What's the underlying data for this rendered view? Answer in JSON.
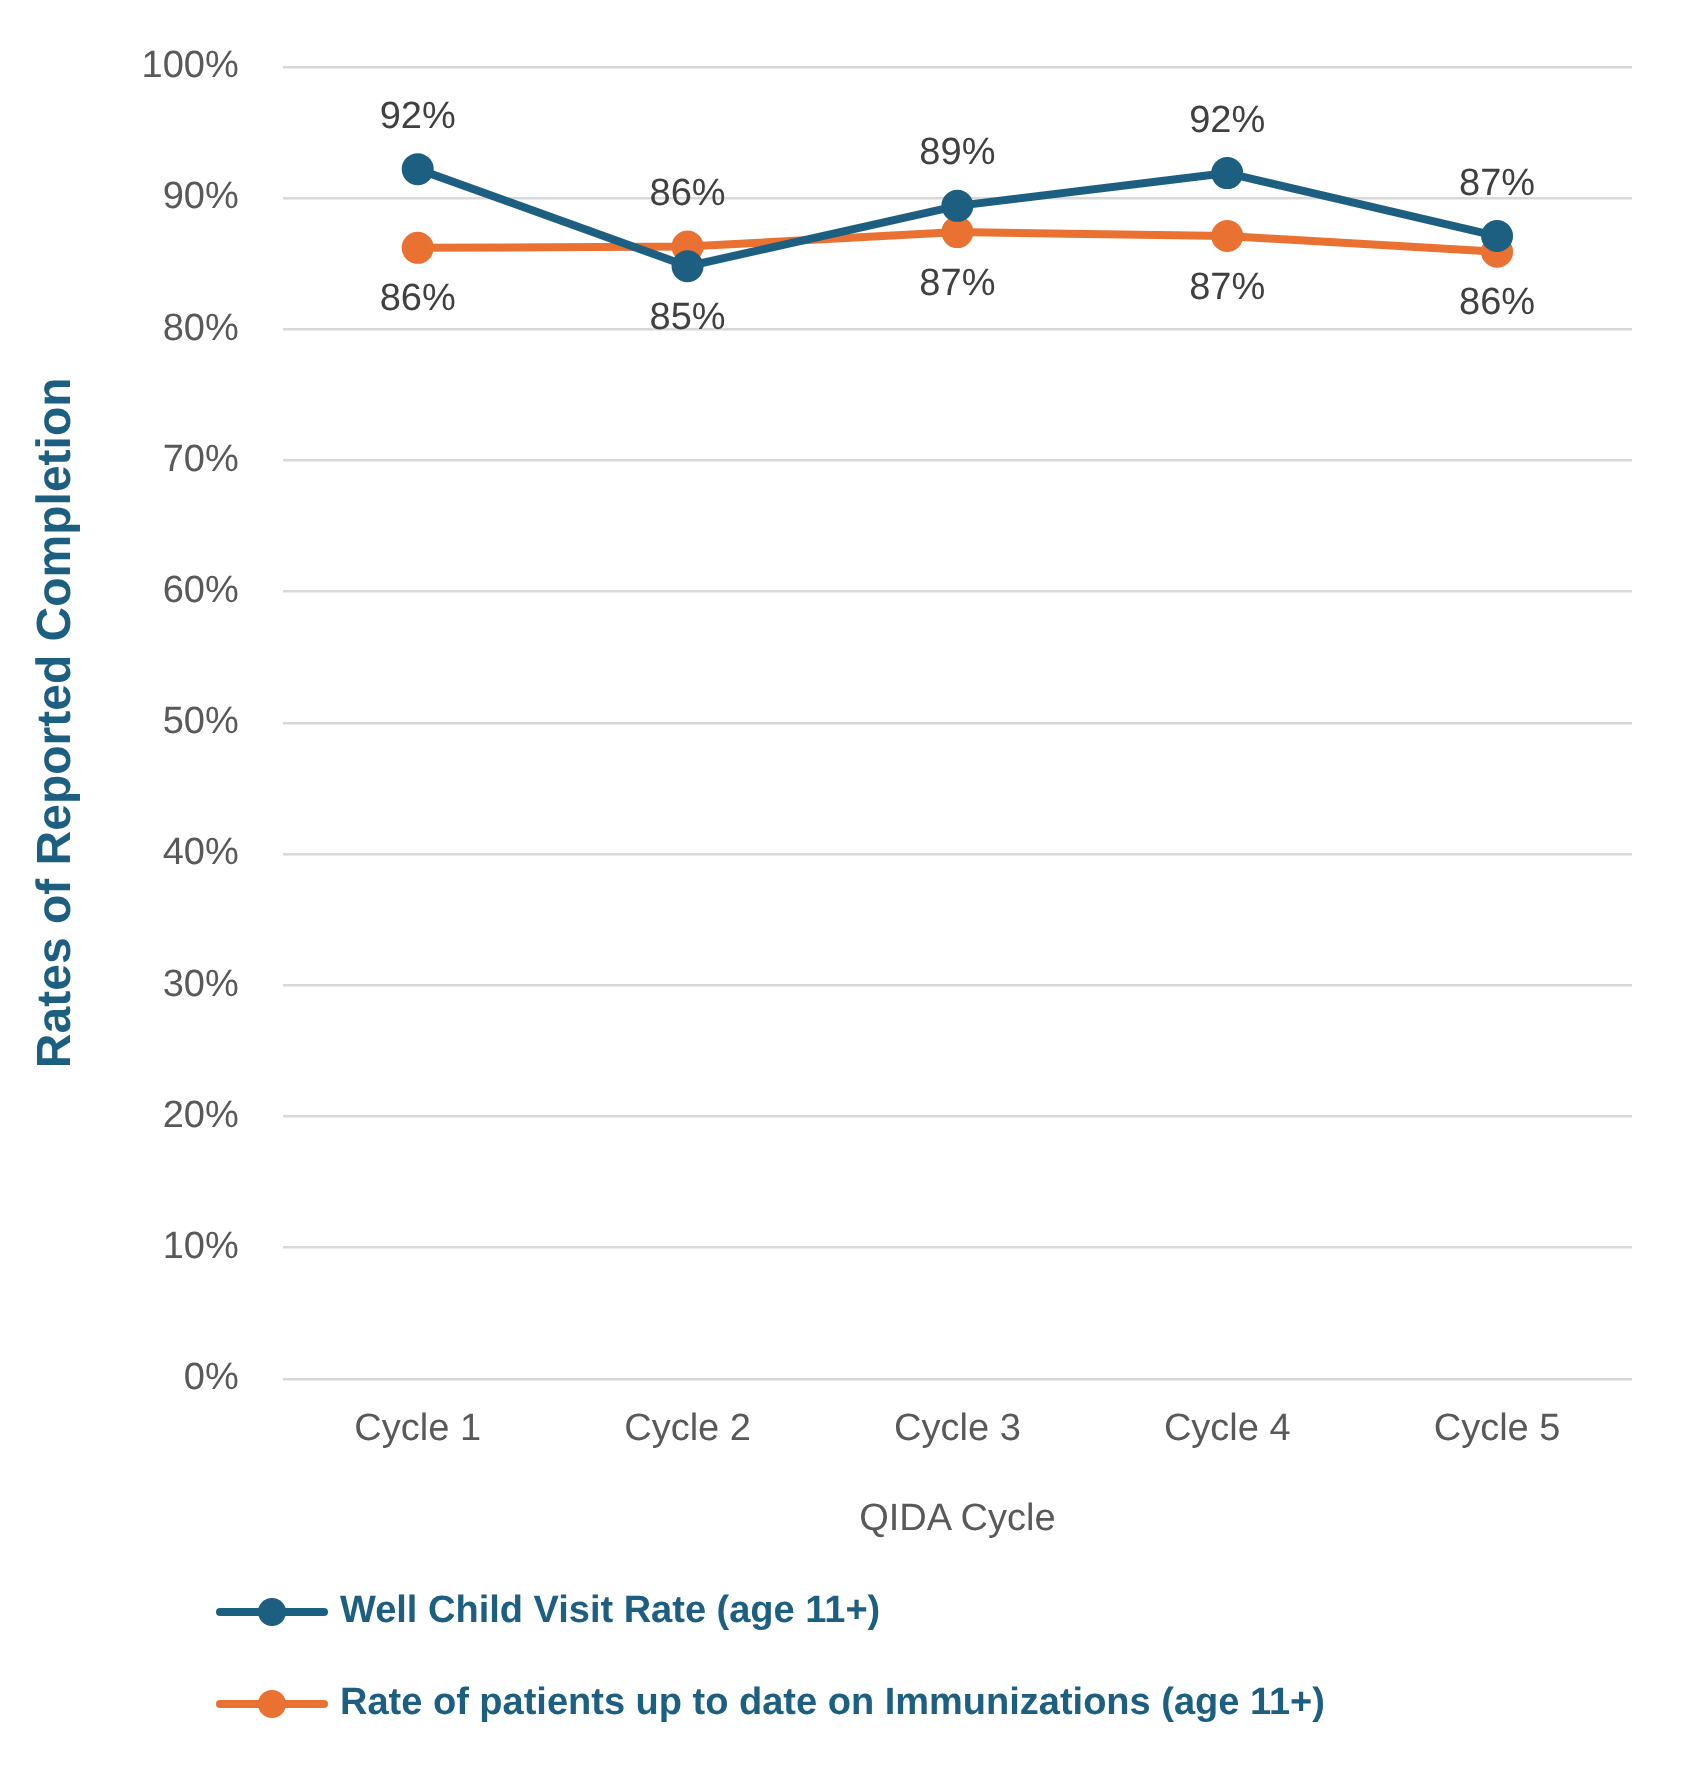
{
  "chart_data": {
    "type": "line",
    "xlabel": "QIDA Cycle",
    "ylabel": "Rates of Reported Completion",
    "categories": [
      "Cycle 1",
      "Cycle 2",
      "Cycle 3",
      "Cycle 4",
      "Cycle 5"
    ],
    "series": [
      {
        "name": "Well Child Visit Rate (age 11+)",
        "color": "#1d5f80",
        "values": [
          92.2,
          84.8,
          89.4,
          91.9,
          87.1
        ],
        "value_labels": [
          "92%",
          "85%",
          "89%",
          "92%",
          "87%"
        ]
      },
      {
        "name": "Rate of patients up to date on Immunizations (age 11+)",
        "color": "#e97132",
        "values": [
          86.2,
          86.3,
          87.4,
          87.1,
          85.9
        ],
        "value_labels": [
          "86%",
          "86%",
          "87%",
          "87%",
          "86%"
        ]
      }
    ],
    "ylim": [
      0,
      100
    ],
    "yticks": [
      {
        "value": 0,
        "label": "0%"
      },
      {
        "value": 10,
        "label": "10%"
      },
      {
        "value": 20,
        "label": "20%"
      },
      {
        "value": 30,
        "label": "30%"
      },
      {
        "value": 40,
        "label": "40%"
      },
      {
        "value": 50,
        "label": "50%"
      },
      {
        "value": 60,
        "label": "60%"
      },
      {
        "value": 70,
        "label": "70%"
      },
      {
        "value": 80,
        "label": "80%"
      },
      {
        "value": 90,
        "label": "90%"
      },
      {
        "value": 100,
        "label": "100%"
      }
    ],
    "grid": "y",
    "legend": "bottom",
    "marker": "circle",
    "line_style": "solid"
  }
}
